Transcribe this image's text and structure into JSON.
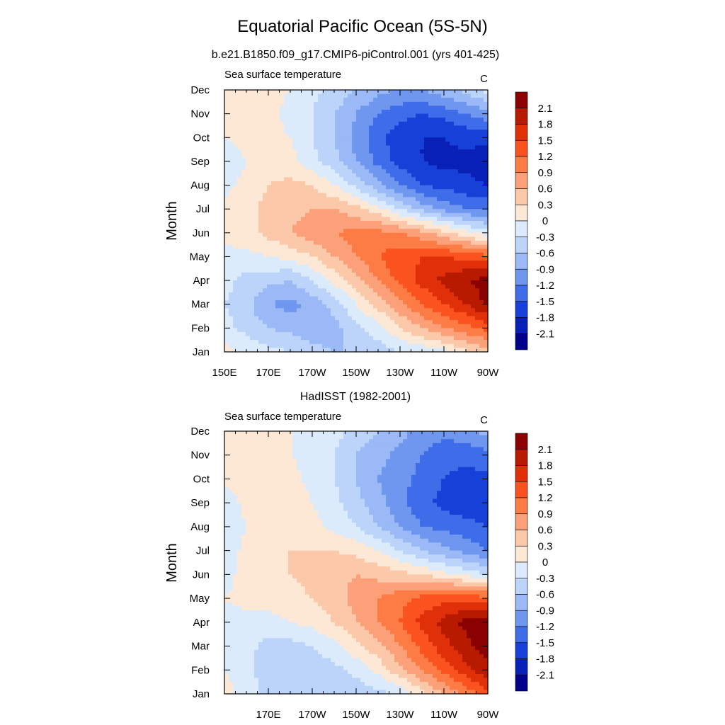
{
  "figure": {
    "title": "Equatorial Pacific Ocean (5S-5N)"
  },
  "colorbar": {
    "labels": [
      "2.1",
      "1.8",
      "1.5",
      "1.2",
      "0.9",
      "0.6",
      "0.3",
      "0",
      "-0.3",
      "-0.6",
      "-0.9",
      "-1.2",
      "-1.5",
      "-1.8",
      "-2.1"
    ],
    "colors_top_to_bottom": [
      "#8b0000",
      "#b81a00",
      "#e0300a",
      "#fb5320",
      "#fd7c45",
      "#fba078",
      "#fcc8aa",
      "#fde8d6",
      "#dcebfb",
      "#bdd4fa",
      "#9ab9f6",
      "#6f97f0",
      "#3f6ce9",
      "#1640d8",
      "#0820b5",
      "#00008c"
    ]
  },
  "chart_data": [
    {
      "type": "heatmap",
      "panel_title": "b.e21.B1850.f09_g17.CMIP6-piControl.001 (yrs 401-425)",
      "left_string": "Sea surface temperature",
      "right_string": "C",
      "ylabel": "Month",
      "yticks": [
        "Jan",
        "Feb",
        "Mar",
        "Apr",
        "May",
        "Jun",
        "Jul",
        "Aug",
        "Sep",
        "Oct",
        "Nov",
        "Dec"
      ],
      "xticks": [
        "150E",
        "170E",
        "170W",
        "150W",
        "130W",
        "110W",
        "90W"
      ],
      "xlim_lon": [
        150,
        270
      ],
      "levels": [
        -2.1,
        -1.8,
        -1.5,
        -1.2,
        -0.9,
        -0.6,
        -0.3,
        0,
        0.3,
        0.6,
        0.9,
        1.2,
        1.5,
        1.8,
        2.1
      ],
      "x_lon": [
        150,
        160,
        170,
        180,
        190,
        200,
        210,
        220,
        230,
        240,
        250,
        260,
        270
      ],
      "months": [
        "Jan",
        "Feb",
        "Mar",
        "Apr",
        "May",
        "Jun",
        "Jul",
        "Aug",
        "Sep",
        "Oct",
        "Nov",
        "Dec"
      ],
      "values": [
        [
          0.1,
          -0.1,
          -0.2,
          -0.3,
          -0.5,
          -0.6,
          -0.6,
          -0.5,
          -0.3,
          -0.2,
          -0.1,
          0.2,
          0.5
        ],
        [
          -0.2,
          -0.4,
          -0.6,
          -0.7,
          -0.8,
          -0.7,
          -0.4,
          -0.1,
          0.3,
          0.6,
          0.9,
          1.1,
          1.3
        ],
        [
          -0.3,
          -0.5,
          -0.9,
          -1.0,
          -0.8,
          -0.5,
          0.0,
          0.4,
          0.8,
          1.2,
          1.5,
          1.8,
          2.2
        ],
        [
          -0.2,
          -0.4,
          -0.5,
          -0.6,
          -0.3,
          0.1,
          0.5,
          0.9,
          1.3,
          1.6,
          1.9,
          2.1,
          2.2
        ],
        [
          -0.1,
          -0.1,
          0.0,
          0.1,
          0.3,
          0.6,
          0.9,
          1.2,
          1.4,
          1.5,
          1.5,
          1.4,
          1.3
        ],
        [
          0.1,
          0.2,
          0.4,
          0.6,
          0.8,
          0.9,
          1.0,
          1.0,
          0.9,
          0.7,
          0.4,
          0.1,
          -0.2
        ],
        [
          0.1,
          0.2,
          0.4,
          0.5,
          0.6,
          0.6,
          0.4,
          0.1,
          -0.3,
          -0.7,
          -1.0,
          -1.2,
          -1.3
        ],
        [
          -0.1,
          0.1,
          0.3,
          0.4,
          0.3,
          0.0,
          -0.4,
          -0.8,
          -1.2,
          -1.5,
          -1.6,
          -1.7,
          -1.8
        ],
        [
          -0.2,
          0.0,
          0.1,
          0.1,
          -0.2,
          -0.5,
          -0.9,
          -1.3,
          -1.6,
          -1.8,
          -1.9,
          -1.9,
          -2.0
        ],
        [
          0.0,
          0.1,
          0.1,
          0.0,
          -0.3,
          -0.6,
          -1.0,
          -1.4,
          -1.7,
          -1.8,
          -1.8,
          -1.7,
          -1.7
        ],
        [
          0.1,
          0.2,
          0.1,
          -0.1,
          -0.3,
          -0.6,
          -0.9,
          -1.2,
          -1.4,
          -1.5,
          -1.4,
          -1.2,
          -1.0
        ],
        [
          0.2,
          0.2,
          0.1,
          0.0,
          -0.2,
          -0.4,
          -0.6,
          -0.8,
          -0.9,
          -0.9,
          -0.7,
          -0.5,
          -0.2
        ]
      ]
    },
    {
      "type": "heatmap",
      "panel_title": "HadISST (1982-2001)",
      "left_string": "Sea surface temperature",
      "right_string": "C",
      "ylabel": "Month",
      "yticks": [
        "Jan",
        "Feb",
        "Mar",
        "Apr",
        "May",
        "Jun",
        "Jul",
        "Aug",
        "Sep",
        "Oct",
        "Nov",
        "Dec"
      ],
      "xticks": [
        "170E",
        "170W",
        "150W",
        "130W",
        "110W",
        "90W"
      ],
      "xlim_lon": [
        150,
        270
      ],
      "levels": [
        -2.1,
        -1.8,
        -1.5,
        -1.2,
        -0.9,
        -0.6,
        -0.3,
        0,
        0.3,
        0.6,
        0.9,
        1.2,
        1.5,
        1.8,
        2.1
      ],
      "x_lon": [
        150,
        160,
        170,
        180,
        190,
        200,
        210,
        220,
        230,
        240,
        250,
        260,
        270
      ],
      "months": [
        "Jan",
        "Feb",
        "Mar",
        "Apr",
        "May",
        "Jun",
        "Jul",
        "Aug",
        "Sep",
        "Oct",
        "Nov",
        "Dec"
      ],
      "values": [
        [
          0.1,
          -0.1,
          -0.4,
          -0.5,
          -0.6,
          -0.6,
          -0.5,
          -0.4,
          -0.2,
          0.2,
          0.6,
          1.0,
          1.4
        ],
        [
          0.0,
          -0.2,
          -0.5,
          -0.6,
          -0.5,
          -0.4,
          -0.2,
          0.1,
          0.5,
          0.9,
          1.3,
          1.7,
          2.0
        ],
        [
          -0.1,
          -0.2,
          -0.4,
          -0.4,
          -0.3,
          -0.1,
          0.2,
          0.5,
          0.9,
          1.3,
          1.7,
          2.0,
          2.3
        ],
        [
          -0.1,
          -0.1,
          -0.1,
          0.0,
          0.1,
          0.3,
          0.6,
          0.9,
          1.2,
          1.6,
          1.9,
          2.2,
          2.2
        ],
        [
          0.0,
          0.1,
          0.1,
          0.2,
          0.3,
          0.5,
          0.7,
          0.9,
          1.1,
          1.3,
          1.4,
          1.4,
          1.3
        ],
        [
          -0.1,
          0.1,
          0.2,
          0.3,
          0.4,
          0.5,
          0.6,
          0.5,
          0.4,
          0.3,
          0.1,
          -0.1,
          -0.3
        ],
        [
          -0.2,
          0.1,
          0.2,
          0.3,
          0.3,
          0.3,
          0.2,
          0.0,
          -0.3,
          -0.6,
          -0.8,
          -1.0,
          -1.2
        ],
        [
          -0.3,
          0.0,
          0.2,
          0.2,
          0.1,
          -0.1,
          -0.3,
          -0.6,
          -0.9,
          -1.2,
          -1.3,
          -1.4,
          -1.5
        ],
        [
          -0.2,
          0.1,
          0.3,
          0.2,
          0.0,
          -0.2,
          -0.5,
          -0.8,
          -1.1,
          -1.4,
          -1.6,
          -1.7,
          -1.7
        ],
        [
          0.1,
          0.2,
          0.2,
          0.1,
          -0.1,
          -0.3,
          -0.6,
          -0.9,
          -1.1,
          -1.3,
          -1.5,
          -1.6,
          -1.6
        ],
        [
          0.1,
          0.2,
          0.1,
          0.0,
          -0.1,
          -0.3,
          -0.6,
          -0.8,
          -1.0,
          -1.2,
          -1.4,
          -1.4,
          -1.3
        ],
        [
          0.2,
          0.2,
          0.1,
          0.0,
          -0.1,
          -0.2,
          -0.4,
          -0.6,
          -0.8,
          -1.0,
          -1.1,
          -1.0,
          -0.8
        ]
      ]
    }
  ]
}
